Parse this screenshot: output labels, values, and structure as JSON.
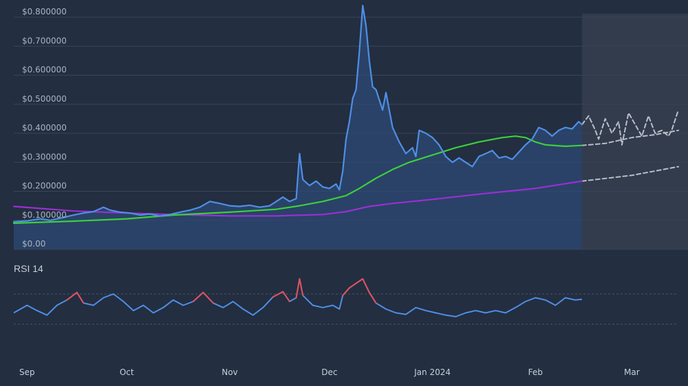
{
  "chart_data": {
    "type": "line",
    "title": "",
    "xlabel": "",
    "ylabel": "",
    "price_panel": {
      "ylim": [
        0,
        0.8
      ],
      "y_ticks": [
        "$0.00",
        "$0.100000",
        "$0.200000",
        "$0.300000",
        "$0.400000",
        "$0.500000",
        "$0.600000",
        "$0.700000",
        "$0.800000"
      ],
      "y_tick_values": [
        0,
        0.1,
        0.2,
        0.3,
        0.4,
        0.5,
        0.6,
        0.7,
        0.8
      ],
      "grid": true,
      "forecast_shaded_from": "2024-02-15"
    },
    "x_ticks": [
      {
        "date": "2023-09-01",
        "label": "Sep"
      },
      {
        "date": "2023-10-01",
        "label": "Oct"
      },
      {
        "date": "2023-11-01",
        "label": "Nov"
      },
      {
        "date": "2023-12-01",
        "label": "Dec"
      },
      {
        "date": "2024-01-01",
        "label": "Jan 2024"
      },
      {
        "date": "2024-02-01",
        "label": "Feb"
      },
      {
        "date": "2024-03-01",
        "label": "Mar"
      }
    ],
    "x_range": [
      "2023-08-28",
      "2024-03-15"
    ],
    "series": [
      {
        "color": "#4f8fe6",
        "points": [
          [
            "2023-08-28",
            0.095
          ],
          [
            "2023-09-01",
            0.098
          ],
          [
            "2023-09-05",
            0.105
          ],
          [
            "2023-09-08",
            0.1
          ],
          [
            "2023-09-12",
            0.11
          ],
          [
            "2023-09-15",
            0.118
          ],
          [
            "2023-09-18",
            0.125
          ],
          [
            "2023-09-21",
            0.13
          ],
          [
            "2023-09-24",
            0.145
          ],
          [
            "2023-09-26",
            0.135
          ],
          [
            "2023-09-29",
            0.128
          ],
          [
            "2023-10-02",
            0.125
          ],
          [
            "2023-10-05",
            0.118
          ],
          [
            "2023-10-08",
            0.122
          ],
          [
            "2023-10-11",
            0.115
          ],
          [
            "2023-10-14",
            0.12
          ],
          [
            "2023-10-17",
            0.128
          ],
          [
            "2023-10-20",
            0.135
          ],
          [
            "2023-10-23",
            0.145
          ],
          [
            "2023-10-26",
            0.165
          ],
          [
            "2023-10-29",
            0.158
          ],
          [
            "2023-11-01",
            0.15
          ],
          [
            "2023-11-04",
            0.148
          ],
          [
            "2023-11-07",
            0.152
          ],
          [
            "2023-11-10",
            0.145
          ],
          [
            "2023-11-13",
            0.15
          ],
          [
            "2023-11-15",
            0.165
          ],
          [
            "2023-11-17",
            0.18
          ],
          [
            "2023-11-19",
            0.165
          ],
          [
            "2023-11-21",
            0.175
          ],
          [
            "2023-11-22",
            0.33
          ],
          [
            "2023-11-23",
            0.24
          ],
          [
            "2023-11-25",
            0.22
          ],
          [
            "2023-11-27",
            0.235
          ],
          [
            "2023-11-29",
            0.215
          ],
          [
            "2023-12-01",
            0.21
          ],
          [
            "2023-12-03",
            0.225
          ],
          [
            "2023-12-04",
            0.205
          ],
          [
            "2023-12-05",
            0.27
          ],
          [
            "2023-12-06",
            0.38
          ],
          [
            "2023-12-07",
            0.44
          ],
          [
            "2023-12-08",
            0.52
          ],
          [
            "2023-12-09",
            0.55
          ],
          [
            "2023-12-10",
            0.68
          ],
          [
            "2023-12-11",
            0.84
          ],
          [
            "2023-12-12",
            0.77
          ],
          [
            "2023-12-13",
            0.65
          ],
          [
            "2023-12-14",
            0.56
          ],
          [
            "2023-12-15",
            0.55
          ],
          [
            "2023-12-17",
            0.48
          ],
          [
            "2023-12-18",
            0.54
          ],
          [
            "2023-12-20",
            0.42
          ],
          [
            "2023-12-22",
            0.37
          ],
          [
            "2023-12-24",
            0.33
          ],
          [
            "2023-12-26",
            0.35
          ],
          [
            "2023-12-27",
            0.32
          ],
          [
            "2023-12-28",
            0.41
          ],
          [
            "2023-12-30",
            0.4
          ],
          [
            "2024-01-01",
            0.385
          ],
          [
            "2024-01-03",
            0.36
          ],
          [
            "2024-01-05",
            0.32
          ],
          [
            "2024-01-07",
            0.3
          ],
          [
            "2024-01-09",
            0.315
          ],
          [
            "2024-01-11",
            0.3
          ],
          [
            "2024-01-13",
            0.285
          ],
          [
            "2024-01-15",
            0.32
          ],
          [
            "2024-01-17",
            0.33
          ],
          [
            "2024-01-19",
            0.34
          ],
          [
            "2024-01-21",
            0.315
          ],
          [
            "2024-01-23",
            0.32
          ],
          [
            "2024-01-25",
            0.31
          ],
          [
            "2024-01-27",
            0.335
          ],
          [
            "2024-01-29",
            0.36
          ],
          [
            "2024-01-31",
            0.38
          ],
          [
            "2024-02-02",
            0.42
          ],
          [
            "2024-02-04",
            0.41
          ],
          [
            "2024-02-06",
            0.39
          ],
          [
            "2024-02-08",
            0.41
          ],
          [
            "2024-02-10",
            0.42
          ],
          [
            "2024-02-12",
            0.415
          ],
          [
            "2024-02-14",
            0.44
          ],
          [
            "2024-02-15",
            0.43
          ]
        ]
      },
      {
        "color": "#3ccf3c",
        "points": [
          [
            "2023-08-28",
            0.09
          ],
          [
            "2023-09-15",
            0.097
          ],
          [
            "2023-10-01",
            0.105
          ],
          [
            "2023-10-15",
            0.118
          ],
          [
            "2023-11-01",
            0.128
          ],
          [
            "2023-11-15",
            0.138
          ],
          [
            "2023-11-22",
            0.15
          ],
          [
            "2023-11-29",
            0.165
          ],
          [
            "2023-12-06",
            0.185
          ],
          [
            "2023-12-10",
            0.21
          ],
          [
            "2023-12-15",
            0.245
          ],
          [
            "2023-12-20",
            0.275
          ],
          [
            "2023-12-25",
            0.3
          ],
          [
            "2024-01-01",
            0.325
          ],
          [
            "2024-01-08",
            0.35
          ],
          [
            "2024-01-15",
            0.37
          ],
          [
            "2024-01-22",
            0.385
          ],
          [
            "2024-01-26",
            0.39
          ],
          [
            "2024-01-29",
            0.385
          ],
          [
            "2024-02-01",
            0.37
          ],
          [
            "2024-02-04",
            0.36
          ],
          [
            "2024-02-10",
            0.355
          ],
          [
            "2024-02-15",
            0.358
          ]
        ]
      },
      {
        "color": "#9b2fd4",
        "points": [
          [
            "2023-08-28",
            0.148
          ],
          [
            "2023-09-15",
            0.132
          ],
          [
            "2023-10-01",
            0.125
          ],
          [
            "2023-10-15",
            0.12
          ],
          [
            "2023-11-01",
            0.115
          ],
          [
            "2023-11-15",
            0.115
          ],
          [
            "2023-11-29",
            0.12
          ],
          [
            "2023-12-06",
            0.13
          ],
          [
            "2023-12-13",
            0.148
          ],
          [
            "2023-12-20",
            0.158
          ],
          [
            "2024-01-01",
            0.172
          ],
          [
            "2024-01-15",
            0.19
          ],
          [
            "2024-02-01",
            0.21
          ],
          [
            "2024-02-15",
            0.235
          ]
        ]
      },
      {
        "color": "#b9bec8",
        "dashed": true,
        "points": [
          [
            "2024-02-15",
            0.43
          ],
          [
            "2024-02-17",
            0.46
          ],
          [
            "2024-02-19",
            0.41
          ],
          [
            "2024-02-20",
            0.38
          ],
          [
            "2024-02-22",
            0.45
          ],
          [
            "2024-02-24",
            0.4
          ],
          [
            "2024-02-26",
            0.44
          ],
          [
            "2024-02-27",
            0.36
          ],
          [
            "2024-02-29",
            0.47
          ],
          [
            "2024-03-02",
            0.43
          ],
          [
            "2024-03-04",
            0.39
          ],
          [
            "2024-03-06",
            0.46
          ],
          [
            "2024-03-08",
            0.4
          ],
          [
            "2024-03-10",
            0.41
          ],
          [
            "2024-03-12",
            0.39
          ],
          [
            "2024-03-13",
            0.41
          ],
          [
            "2024-03-15",
            0.48
          ]
        ]
      },
      {
        "color": "#b9bec8",
        "dashed": true,
        "points": [
          [
            "2024-02-15",
            0.358
          ],
          [
            "2024-02-22",
            0.365
          ],
          [
            "2024-03-01",
            0.385
          ],
          [
            "2024-03-08",
            0.395
          ],
          [
            "2024-03-15",
            0.41
          ]
        ]
      },
      {
        "color": "#b9bec8",
        "dashed": true,
        "points": [
          [
            "2024-02-15",
            0.235
          ],
          [
            "2024-03-01",
            0.255
          ],
          [
            "2024-03-15",
            0.285
          ]
        ]
      }
    ],
    "rsi": {
      "title": "RSI 14",
      "ylim": [
        0,
        100
      ],
      "bands": [
        70,
        30
      ],
      "overbought_color": "#e0505a",
      "line_color": "#4f8fe6",
      "points": [
        [
          "2023-08-28",
          45
        ],
        [
          "2023-09-01",
          55
        ],
        [
          "2023-09-04",
          48
        ],
        [
          "2023-09-07",
          42
        ],
        [
          "2023-09-10",
          55
        ],
        [
          "2023-09-13",
          62
        ],
        [
          "2023-09-16",
          72
        ],
        [
          "2023-09-18",
          58
        ],
        [
          "2023-09-21",
          55
        ],
        [
          "2023-09-24",
          65
        ],
        [
          "2023-09-27",
          70
        ],
        [
          "2023-09-30",
          60
        ],
        [
          "2023-10-03",
          48
        ],
        [
          "2023-10-06",
          55
        ],
        [
          "2023-10-09",
          45
        ],
        [
          "2023-10-12",
          52
        ],
        [
          "2023-10-15",
          62
        ],
        [
          "2023-10-18",
          55
        ],
        [
          "2023-10-21",
          60
        ],
        [
          "2023-10-24",
          72
        ],
        [
          "2023-10-27",
          58
        ],
        [
          "2023-10-30",
          52
        ],
        [
          "2023-11-02",
          60
        ],
        [
          "2023-11-05",
          50
        ],
        [
          "2023-11-08",
          42
        ],
        [
          "2023-11-11",
          52
        ],
        [
          "2023-11-14",
          66
        ],
        [
          "2023-11-17",
          73
        ],
        [
          "2023-11-19",
          60
        ],
        [
          "2023-11-21",
          65
        ],
        [
          "2023-11-22",
          90
        ],
        [
          "2023-11-23",
          68
        ],
        [
          "2023-11-26",
          55
        ],
        [
          "2023-11-29",
          52
        ],
        [
          "2023-12-02",
          55
        ],
        [
          "2023-12-04",
          50
        ],
        [
          "2023-12-05",
          68
        ],
        [
          "2023-12-07",
          78
        ],
        [
          "2023-12-09",
          84
        ],
        [
          "2023-12-11",
          90
        ],
        [
          "2023-12-13",
          72
        ],
        [
          "2023-12-15",
          58
        ],
        [
          "2023-12-18",
          50
        ],
        [
          "2023-12-21",
          45
        ],
        [
          "2023-12-24",
          43
        ],
        [
          "2023-12-27",
          52
        ],
        [
          "2023-12-30",
          48
        ],
        [
          "2024-01-02",
          45
        ],
        [
          "2024-01-05",
          42
        ],
        [
          "2024-01-08",
          40
        ],
        [
          "2024-01-11",
          45
        ],
        [
          "2024-01-14",
          48
        ],
        [
          "2024-01-17",
          45
        ],
        [
          "2024-01-20",
          48
        ],
        [
          "2024-01-23",
          45
        ],
        [
          "2024-01-26",
          52
        ],
        [
          "2024-01-29",
          60
        ],
        [
          "2024-02-01",
          65
        ],
        [
          "2024-02-04",
          62
        ],
        [
          "2024-02-07",
          55
        ],
        [
          "2024-02-10",
          65
        ],
        [
          "2024-02-13",
          62
        ],
        [
          "2024-02-15",
          63
        ]
      ]
    }
  }
}
